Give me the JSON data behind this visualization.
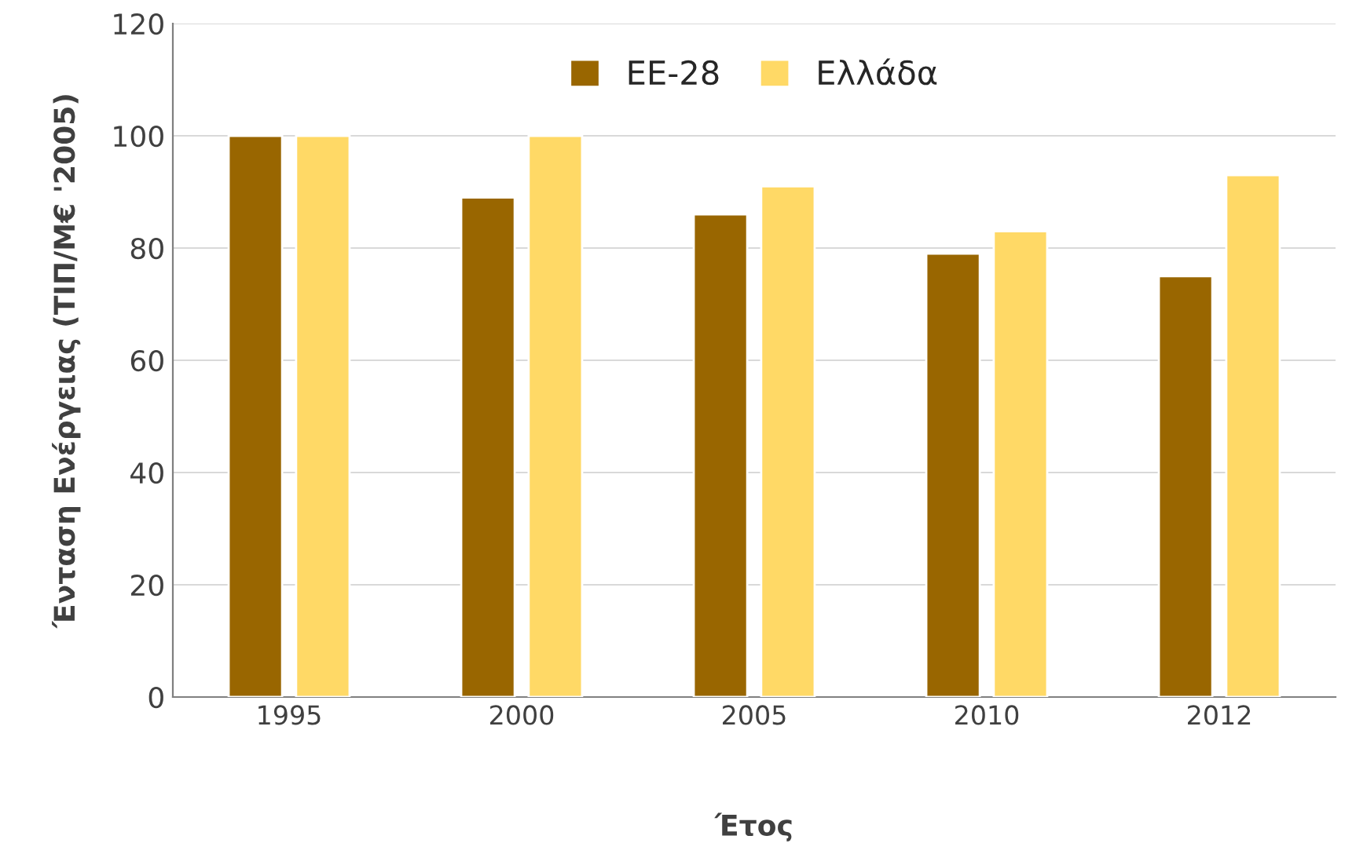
{
  "chart_data": {
    "type": "bar",
    "xlabel": "Έτος",
    "ylabel": "Ένταση Ενέργειας (ΤΙΠ/Μ€ '2005)",
    "categories": [
      "1995",
      "2000",
      "2005",
      "2010",
      "2012"
    ],
    "series": [
      {
        "name": "ΕΕ-28",
        "color": "#996600",
        "values": [
          100,
          89,
          86,
          79,
          75
        ]
      },
      {
        "name": "Ελλάδα",
        "color": "#ffd966",
        "values": [
          100,
          100,
          91,
          83,
          93
        ]
      }
    ],
    "ylim": [
      0,
      120
    ],
    "yticks": [
      0,
      20,
      40,
      60,
      80,
      100,
      120
    ],
    "grid": "y",
    "legend": "top"
  }
}
